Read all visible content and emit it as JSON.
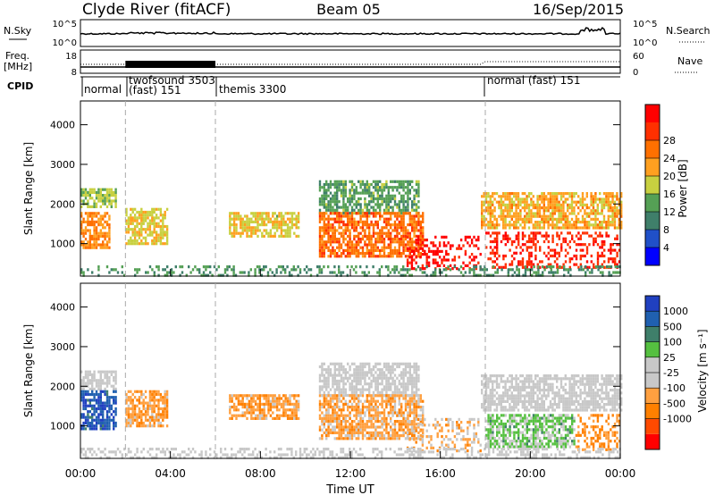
{
  "header": {
    "station": "Clyde River (fitACF)",
    "beam": "Beam 05",
    "date": "16/Sep/2015"
  },
  "nsky": {
    "label": "N.Sky",
    "ticks": [
      "10^5",
      "10^0"
    ],
    "right_label": "N.Search",
    "right_ticks": [
      "10^5",
      "10^0"
    ]
  },
  "freq": {
    "label_line1": "Freq.",
    "label_line2": "[MHz]",
    "ticks": [
      "18",
      "8"
    ],
    "right_label": "Nave",
    "right_ticks": [
      "60",
      "0"
    ]
  },
  "cpid": {
    "label": "CPID",
    "segments": [
      {
        "start_hour": 0.0,
        "text_lines": [
          "normal"
        ]
      },
      {
        "start_hour": 2.0,
        "text_lines": [
          "twofsound 3503",
          "(fast) 151"
        ]
      },
      {
        "start_hour": 6.0,
        "text_lines": [
          "themis 3300"
        ]
      },
      {
        "start_hour": 18.0,
        "text_lines": [
          "normal (fast) 151"
        ]
      }
    ]
  },
  "axes": {
    "xlabel": "Time UT",
    "x_ticks": [
      "00:00",
      "04:00",
      "08:00",
      "12:00",
      "16:00",
      "20:00",
      "00:00"
    ],
    "ylabel": "Slant Range [km]",
    "y_ticks": [
      "1000",
      "2000",
      "3000",
      "4000"
    ]
  },
  "colors": {
    "power_scale": [
      "#0000ff",
      "#2050c8",
      "#3f7f6a",
      "#55a055",
      "#c8d040",
      "#ffa020",
      "#ff7000",
      "#ff3000",
      "#ff0000"
    ],
    "velocity_scale": [
      "#ff0000",
      "#ff4a00",
      "#ff8000",
      "#ffa040",
      "#c8c8c8",
      "#c8c8c8",
      "#55c040",
      "#3f7f6a",
      "#2060b0",
      "#2040c0"
    ]
  },
  "chart_data": [
    {
      "type": "heatmap",
      "title": "Power",
      "xlabel": "Time UT",
      "ylabel": "Slant Range [km]",
      "xlim": [
        0,
        24
      ],
      "ylim": [
        180,
        4600
      ],
      "colorbar": {
        "label": "Power [dB]",
        "ticks": [
          "4",
          "8",
          "12",
          "16",
          "20",
          "24",
          "28"
        ],
        "range": [
          0,
          30
        ]
      },
      "echo_regions": [
        {
          "t_start": 0.0,
          "t_end": 1.6,
          "range_start": 1900,
          "range_end": 2400,
          "value": 14
        },
        {
          "t_start": 0.0,
          "t_end": 1.3,
          "range_start": 900,
          "range_end": 1800,
          "value": 20
        },
        {
          "t_start": 2.0,
          "t_end": 3.9,
          "range_start": 1000,
          "range_end": 1900,
          "value": 16
        },
        {
          "t_start": 6.6,
          "t_end": 9.7,
          "range_start": 1200,
          "range_end": 1800,
          "value": 16
        },
        {
          "t_start": 10.6,
          "t_end": 15.0,
          "range_start": 1800,
          "range_end": 2600,
          "value": 11
        },
        {
          "t_start": 10.6,
          "t_end": 15.2,
          "range_start": 700,
          "range_end": 1800,
          "value": 22
        },
        {
          "t_start": 14.5,
          "t_end": 17.8,
          "range_start": 400,
          "range_end": 1200,
          "value": 28
        },
        {
          "t_start": 17.8,
          "t_end": 24.0,
          "range_start": 1400,
          "range_end": 2300,
          "value": 18
        },
        {
          "t_start": 18.0,
          "t_end": 24.0,
          "range_start": 400,
          "range_end": 1300,
          "value": 26
        },
        {
          "t_start": 0.0,
          "t_end": 24.0,
          "range_start": 180,
          "range_end": 450,
          "value": 10
        }
      ]
    },
    {
      "type": "heatmap",
      "title": "Velocity",
      "xlabel": "Time UT",
      "ylabel": "Slant Range [km]",
      "xlim": [
        0,
        24
      ],
      "ylim": [
        180,
        4600
      ],
      "colorbar": {
        "label": "Velocity [m s⁻¹]",
        "ticks": [
          "1000",
          "500",
          "100",
          "25",
          "-25",
          "-100",
          "-500",
          "-1000"
        ],
        "range": [
          -1200,
          1200
        ]
      },
      "echo_regions": [
        {
          "t_start": 0.0,
          "t_end": 1.6,
          "range_start": 1900,
          "range_end": 2400,
          "value": 0
        },
        {
          "t_start": 0.0,
          "t_end": 1.6,
          "range_start": 900,
          "range_end": 1900,
          "value": 900
        },
        {
          "t_start": 2.0,
          "t_end": 3.9,
          "range_start": 1000,
          "range_end": 1900,
          "value": -400
        },
        {
          "t_start": 6.6,
          "t_end": 9.7,
          "range_start": 1200,
          "range_end": 1800,
          "value": -400
        },
        {
          "t_start": 10.6,
          "t_end": 15.0,
          "range_start": 1800,
          "range_end": 2600,
          "value": 0
        },
        {
          "t_start": 10.6,
          "t_end": 15.2,
          "range_start": 700,
          "range_end": 1800,
          "value": -350
        },
        {
          "t_start": 14.5,
          "t_end": 17.8,
          "range_start": 400,
          "range_end": 1200,
          "value": -300
        },
        {
          "t_start": 17.8,
          "t_end": 24.0,
          "range_start": 1400,
          "range_end": 2300,
          "value": 0
        },
        {
          "t_start": 18.0,
          "t_end": 22.0,
          "range_start": 500,
          "range_end": 1300,
          "value": 300
        },
        {
          "t_start": 22.0,
          "t_end": 24.0,
          "range_start": 400,
          "range_end": 1300,
          "value": -500
        },
        {
          "t_start": 0.0,
          "t_end": 24.0,
          "range_start": 180,
          "range_end": 450,
          "value": 0
        }
      ]
    }
  ]
}
